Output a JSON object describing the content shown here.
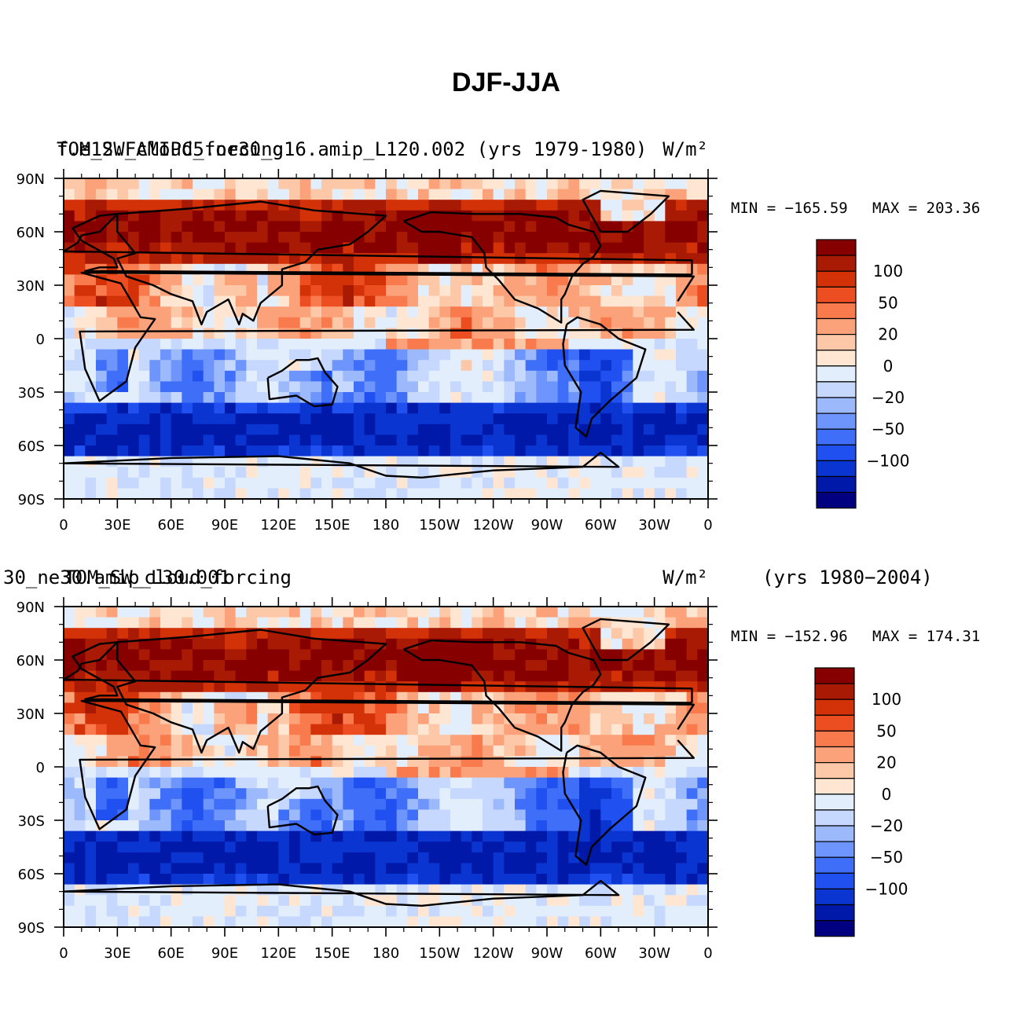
{
  "figure_title": "DJF-JJA",
  "colors": {
    "levels": [
      "#000080",
      "#0019a8",
      "#0a35d0",
      "#2050f0",
      "#3f6ff8",
      "#6d95fb",
      "#9cb9fc",
      "#c6d8fd",
      "#e3eefd",
      "#fee6d2",
      "#fdc8a8",
      "#fca27a",
      "#f87a4d",
      "#ec4e22",
      "#d33108",
      "#a81a04",
      "#870000"
    ],
    "coast": "#000000"
  },
  "chart_data": [
    {
      "type": "heatmap",
      "title_left": "TOM_SW_cloud_forcing",
      "title_left_overlay": "f.e12.FAMIPC5.ne30_g16.amip_L120.002 (yrs 1979-1980)",
      "title_right": "W/m²",
      "years": "",
      "min_label": "MIN = −165.59",
      "max_label": "MAX = 203.36",
      "min": -165.59,
      "max": 203.36,
      "xlabels": [
        "0",
        "30E",
        "60E",
        "90E",
        "120E",
        "150E",
        "180",
        "150W",
        "120W",
        "90W",
        "60W",
        "30W",
        "0"
      ],
      "ylabels": [
        "90N",
        "60N",
        "30N",
        "0",
        "30S",
        "60S",
        "90S"
      ],
      "colorbar_labels": [
        "100",
        "50",
        "20",
        "0",
        "−20",
        "−50",
        "−100"
      ]
    },
    {
      "type": "heatmap",
      "title_left": "TOM_SW_cloud_forcing",
      "title_left_overlay": "30_ne30.amip_L30.001",
      "title_right": "W/m²",
      "years": "(yrs 1980−2004)",
      "min_label": "MIN = −152.96",
      "max_label": "MAX = 174.31",
      "min": -152.96,
      "max": 174.31,
      "xlabels": [
        "0",
        "30E",
        "60E",
        "90E",
        "120E",
        "150E",
        "180",
        "150W",
        "120W",
        "90W",
        "60W",
        "30W",
        "0"
      ],
      "ylabels": [
        "90N",
        "60N",
        "30N",
        "0",
        "30S",
        "60S",
        "90S"
      ],
      "colorbar_labels": [
        "100",
        "50",
        "20",
        "0",
        "−20",
        "−50",
        "−100"
      ]
    }
  ]
}
